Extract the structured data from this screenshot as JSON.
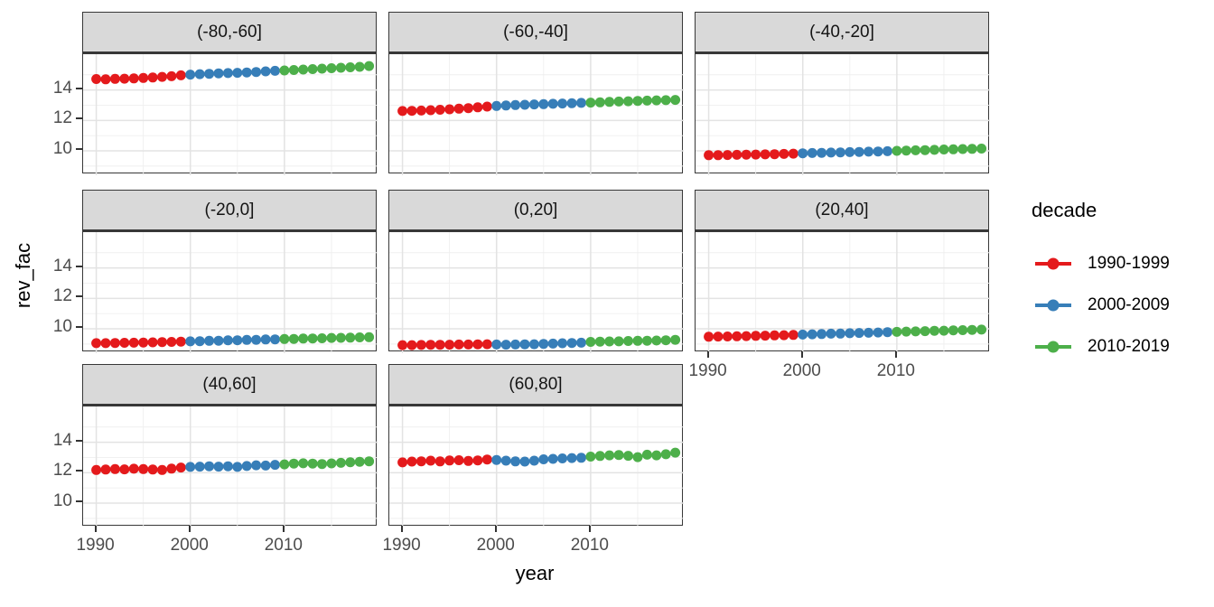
{
  "chart_data": {
    "type": "scatter",
    "title": "",
    "xlabel": "year",
    "ylabel": "rev_fac",
    "legend_title": "decade",
    "legend_position": "right",
    "grid": true,
    "xlim": [
      1988.6,
      2019.9
    ],
    "ylim": [
      8.4,
      16.35
    ],
    "x_ticks": [
      1990,
      2000,
      2010
    ],
    "y_ticks": [
      14,
      12,
      10
    ],
    "x_minor_gridlines": [
      1995,
      2005,
      2015
    ],
    "y_minor_gridlines": [
      9,
      11,
      13,
      15
    ],
    "years": [
      1990,
      1991,
      1992,
      1993,
      1994,
      1995,
      1996,
      1997,
      1998,
      1999,
      2000,
      2001,
      2002,
      2003,
      2004,
      2005,
      2006,
      2007,
      2008,
      2009,
      2010,
      2011,
      2012,
      2013,
      2014,
      2015,
      2016,
      2017,
      2018,
      2019
    ],
    "legend": {
      "title": "decade",
      "entries": [
        {
          "label": "1990-1999",
          "color": "#e41a1c",
          "start_year": 1990,
          "end_year": 1999
        },
        {
          "label": "2000-2009",
          "color": "#377eb8",
          "start_year": 2000,
          "end_year": 2009
        },
        {
          "label": "2010-2019",
          "color": "#4daf4a",
          "start_year": 2010,
          "end_year": 2019
        }
      ]
    },
    "facets": [
      {
        "label": "(-80,-60]",
        "values": [
          14.72,
          14.7,
          14.73,
          14.74,
          14.76,
          14.79,
          14.82,
          14.86,
          14.9,
          14.96,
          15.01,
          15.04,
          15.06,
          15.09,
          15.11,
          15.13,
          15.15,
          15.18,
          15.22,
          15.26,
          15.28,
          15.31,
          15.34,
          15.37,
          15.4,
          15.43,
          15.46,
          15.49,
          15.52,
          15.57
        ]
      },
      {
        "label": "(-60,-40]",
        "values": [
          12.62,
          12.63,
          12.65,
          12.67,
          12.7,
          12.73,
          12.77,
          12.81,
          12.86,
          12.91,
          12.95,
          12.98,
          13.01,
          13.03,
          13.05,
          13.07,
          13.09,
          13.11,
          13.13,
          13.15,
          13.17,
          13.19,
          13.22,
          13.24,
          13.26,
          13.28,
          13.3,
          13.32,
          13.33,
          13.35
        ]
      },
      {
        "label": "(-40,-20]",
        "values": [
          9.72,
          9.72,
          9.73,
          9.74,
          9.75,
          9.76,
          9.77,
          9.78,
          9.8,
          9.82,
          9.84,
          9.86,
          9.87,
          9.89,
          9.9,
          9.92,
          9.93,
          9.95,
          9.96,
          9.98,
          10.0,
          10.02,
          10.04,
          10.05,
          10.07,
          10.09,
          10.1,
          10.12,
          10.13,
          10.15
        ]
      },
      {
        "label": "(-20,0]",
        "values": [
          9.06,
          9.06,
          9.07,
          9.08,
          9.09,
          9.1,
          9.11,
          9.13,
          9.14,
          9.16,
          9.18,
          9.19,
          9.21,
          9.22,
          9.24,
          9.25,
          9.27,
          9.28,
          9.3,
          9.31,
          9.33,
          9.34,
          9.36,
          9.37,
          9.38,
          9.4,
          9.41,
          9.42,
          9.44,
          9.45
        ]
      },
      {
        "label": "(0,20]",
        "values": [
          8.93,
          8.93,
          8.94,
          8.95,
          8.95,
          8.96,
          8.97,
          8.97,
          8.98,
          8.99,
          8.97,
          8.96,
          8.97,
          8.98,
          8.99,
          9.01,
          9.03,
          9.05,
          9.07,
          9.09,
          9.14,
          9.16,
          9.17,
          9.18,
          9.2,
          9.21,
          9.22,
          9.23,
          9.25,
          9.28
        ]
      },
      {
        "label": "(20,40]",
        "values": [
          9.48,
          9.49,
          9.5,
          9.51,
          9.52,
          9.54,
          9.55,
          9.57,
          9.58,
          9.6,
          9.62,
          9.64,
          9.66,
          9.68,
          9.69,
          9.71,
          9.73,
          9.74,
          9.76,
          9.78,
          9.8,
          9.82,
          9.83,
          9.85,
          9.87,
          9.88,
          9.9,
          9.91,
          9.93,
          9.95
        ]
      },
      {
        "label": "(40,60]",
        "values": [
          12.18,
          12.21,
          12.24,
          12.22,
          12.26,
          12.24,
          12.21,
          12.18,
          12.27,
          12.34,
          12.38,
          12.4,
          12.42,
          12.4,
          12.42,
          12.38,
          12.44,
          12.49,
          12.47,
          12.52,
          12.55,
          12.6,
          12.62,
          12.6,
          12.57,
          12.61,
          12.65,
          12.69,
          12.72,
          12.75
        ]
      },
      {
        "label": "(60,80]",
        "values": [
          12.68,
          12.73,
          12.75,
          12.79,
          12.74,
          12.8,
          12.82,
          12.77,
          12.81,
          12.87,
          12.84,
          12.79,
          12.74,
          12.73,
          12.79,
          12.88,
          12.91,
          12.94,
          12.96,
          12.98,
          13.06,
          13.1,
          13.14,
          13.16,
          13.11,
          13.02,
          13.18,
          13.14,
          13.21,
          13.32
        ]
      }
    ]
  },
  "theme": {
    "strip_background": "#d9d9d9",
    "panel_border": "#383838",
    "grid_major_color": "#e3e3e3",
    "grid_minor_color": "#efefef",
    "tick_text_color": "#4d4d4d",
    "point_radius": 5.5
  }
}
